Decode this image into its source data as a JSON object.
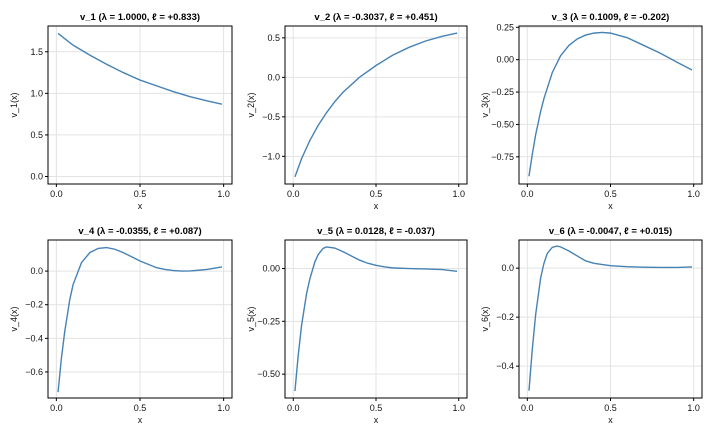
{
  "chart_data": [
    {
      "type": "line",
      "title": "v_1   (λ = 1.0000, ℓ = +0.833)",
      "xlabel": "x",
      "ylabel": "v_1(x)",
      "xlim": [
        -0.05,
        1.05
      ],
      "ylim": [
        -0.09,
        1.81
      ],
      "xticks": [
        0.0,
        0.5,
        1.0
      ],
      "xtick_labels": [
        "0.0",
        "0.5",
        "1.0"
      ],
      "yticks": [
        0.0,
        0.5,
        1.0,
        1.5
      ],
      "ytick_labels": [
        "0.0",
        "0.5",
        "1.0",
        "1.5"
      ],
      "grid": true,
      "series": [
        {
          "color": "#4682b4",
          "x": [
            0.01,
            0.1,
            0.2,
            0.3,
            0.4,
            0.5,
            0.6,
            0.7,
            0.8,
            0.9,
            0.99
          ],
          "y": [
            1.72,
            1.58,
            1.46,
            1.35,
            1.25,
            1.16,
            1.09,
            1.02,
            0.96,
            0.91,
            0.87
          ]
        }
      ]
    },
    {
      "type": "line",
      "title": "v_2   (λ = -0.3037, ℓ = +0.451)",
      "xlabel": "x",
      "ylabel": "v_2(x)",
      "xlim": [
        -0.05,
        1.05
      ],
      "ylim": [
        -1.35,
        0.65
      ],
      "xticks": [
        0.0,
        0.5,
        1.0
      ],
      "xtick_labels": [
        "0.0",
        "0.5",
        "1.0"
      ],
      "yticks": [
        -1.0,
        -0.5,
        0.0,
        0.5
      ],
      "ytick_labels": [
        "−1.0",
        "−0.5",
        "0.0",
        "0.5"
      ],
      "grid": true,
      "series": [
        {
          "color": "#4682b4",
          "x": [
            0.01,
            0.05,
            0.1,
            0.15,
            0.2,
            0.25,
            0.3,
            0.4,
            0.5,
            0.6,
            0.7,
            0.8,
            0.9,
            0.99
          ],
          "y": [
            -1.26,
            -1.03,
            -0.8,
            -0.61,
            -0.45,
            -0.31,
            -0.19,
            0.0,
            0.15,
            0.28,
            0.38,
            0.46,
            0.52,
            0.56
          ]
        }
      ]
    },
    {
      "type": "line",
      "title": "v_3   (λ = 0.1009, ℓ = -0.202)",
      "xlabel": "x",
      "ylabel": "v_3(x)",
      "xlim": [
        -0.05,
        1.05
      ],
      "ylim": [
        -0.96,
        0.26
      ],
      "xticks": [
        0.0,
        0.5,
        1.0
      ],
      "xtick_labels": [
        "0.0",
        "0.5",
        "1.0"
      ],
      "yticks": [
        -0.75,
        -0.5,
        -0.25,
        0.0,
        0.25
      ],
      "ytick_labels": [
        "−0.75",
        "−0.50",
        "−0.25",
        "0.00",
        "0.25"
      ],
      "grid": true,
      "series": [
        {
          "color": "#4682b4",
          "x": [
            0.01,
            0.03,
            0.05,
            0.08,
            0.1,
            0.15,
            0.2,
            0.25,
            0.3,
            0.35,
            0.4,
            0.45,
            0.5,
            0.6,
            0.7,
            0.8,
            0.9,
            0.99
          ],
          "y": [
            -0.9,
            -0.73,
            -0.58,
            -0.4,
            -0.3,
            -0.1,
            0.03,
            0.11,
            0.16,
            0.19,
            0.205,
            0.21,
            0.205,
            0.17,
            0.11,
            0.05,
            -0.02,
            -0.08
          ]
        }
      ]
    },
    {
      "type": "line",
      "title": "v_4   (λ = -0.0355, ℓ = +0.087)",
      "xlabel": "x",
      "ylabel": "v_4(x)",
      "xlim": [
        -0.05,
        1.05
      ],
      "ylim": [
        -0.755,
        0.185
      ],
      "xticks": [
        0.0,
        0.5,
        1.0
      ],
      "xtick_labels": [
        "0.0",
        "0.5",
        "1.0"
      ],
      "yticks": [
        -0.6,
        -0.4,
        -0.2,
        0.0
      ],
      "ytick_labels": [
        "−0.6",
        "−0.4",
        "−0.2",
        "0.0"
      ],
      "grid": true,
      "series": [
        {
          "color": "#4682b4",
          "x": [
            0.01,
            0.03,
            0.05,
            0.08,
            0.1,
            0.15,
            0.2,
            0.25,
            0.3,
            0.35,
            0.4,
            0.45,
            0.5,
            0.55,
            0.6,
            0.65,
            0.7,
            0.75,
            0.8,
            0.85,
            0.9,
            0.95,
            0.99
          ],
          "y": [
            -0.72,
            -0.52,
            -0.36,
            -0.17,
            -0.08,
            0.05,
            0.11,
            0.135,
            0.14,
            0.13,
            0.11,
            0.085,
            0.06,
            0.04,
            0.02,
            0.01,
            0.003,
            0.0,
            0.001,
            0.005,
            0.01,
            0.018,
            0.025
          ]
        }
      ]
    },
    {
      "type": "line",
      "title": "v_5   (λ = 0.0128, ℓ = -0.037)",
      "xlabel": "x",
      "ylabel": "v_5(x)",
      "xlim": [
        -0.05,
        1.05
      ],
      "ylim": [
        -0.613,
        0.135
      ],
      "xticks": [
        0.0,
        0.5,
        1.0
      ],
      "xtick_labels": [
        "0.0",
        "0.5",
        "1.0"
      ],
      "yticks": [
        -0.5,
        -0.25,
        0.0
      ],
      "ytick_labels": [
        "−0.50",
        "−0.25",
        "0.00"
      ],
      "grid": true,
      "series": [
        {
          "color": "#4682b4",
          "x": [
            0.01,
            0.03,
            0.05,
            0.08,
            0.1,
            0.13,
            0.15,
            0.18,
            0.2,
            0.25,
            0.3,
            0.35,
            0.4,
            0.45,
            0.5,
            0.55,
            0.6,
            0.7,
            0.8,
            0.9,
            0.99
          ],
          "y": [
            -0.58,
            -0.41,
            -0.27,
            -0.12,
            -0.05,
            0.03,
            0.065,
            0.095,
            0.102,
            0.097,
            0.08,
            0.06,
            0.04,
            0.025,
            0.015,
            0.008,
            0.003,
            0.0,
            -0.002,
            -0.005,
            -0.013
          ]
        }
      ]
    },
    {
      "type": "line",
      "title": "v_6   (λ = -0.0047, ℓ = +0.015)",
      "xlabel": "x",
      "ylabel": "v_6(x)",
      "xlim": [
        -0.05,
        1.05
      ],
      "ylim": [
        -0.53,
        0.115
      ],
      "xticks": [
        0.0,
        0.5,
        1.0
      ],
      "xtick_labels": [
        "0.0",
        "0.5",
        "1.0"
      ],
      "yticks": [
        -0.4,
        -0.2,
        0.0
      ],
      "ytick_labels": [
        "−0.4",
        "−0.2",
        "0.0"
      ],
      "grid": true,
      "series": [
        {
          "color": "#4682b4",
          "x": [
            0.01,
            0.03,
            0.05,
            0.08,
            0.1,
            0.12,
            0.15,
            0.18,
            0.2,
            0.25,
            0.3,
            0.35,
            0.4,
            0.5,
            0.6,
            0.7,
            0.8,
            0.9,
            0.99
          ],
          "y": [
            -0.5,
            -0.33,
            -0.19,
            -0.04,
            0.02,
            0.06,
            0.085,
            0.09,
            0.087,
            0.07,
            0.05,
            0.03,
            0.02,
            0.01,
            0.006,
            0.004,
            0.003,
            0.003,
            0.005
          ]
        }
      ]
    }
  ]
}
